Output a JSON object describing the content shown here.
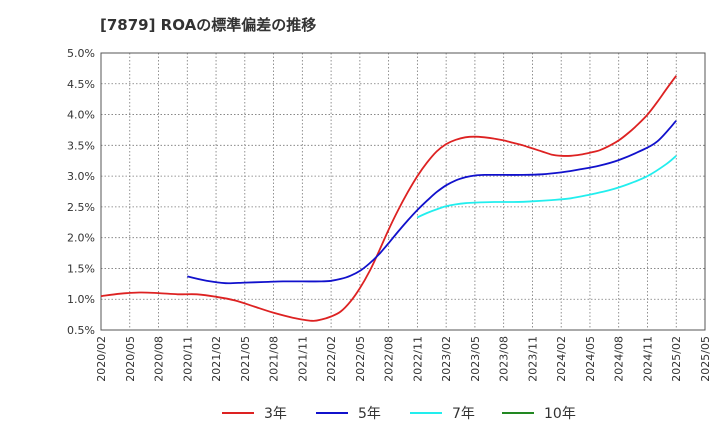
{
  "chart_data": {
    "type": "line",
    "title": "[7879]  ROAの標準偏差の推移",
    "x_ticks": [
      "2020/02",
      "2020/05",
      "2020/08",
      "2020/11",
      "2021/02",
      "2021/05",
      "2021/08",
      "2021/11",
      "2022/02",
      "2022/05",
      "2022/08",
      "2022/11",
      "2023/02",
      "2023/05",
      "2023/08",
      "2023/11",
      "2024/02",
      "2024/05",
      "2024/08",
      "2024/11",
      "2025/02",
      "2025/05"
    ],
    "y_ticks": [
      "0.5%",
      "1.0%",
      "1.5%",
      "2.0%",
      "2.5%",
      "3.0%",
      "3.5%",
      "4.0%",
      "4.5%",
      "5.0%"
    ],
    "ylim": [
      0.5,
      5.0
    ],
    "grid": true,
    "legend_position": "bottom",
    "series": [
      {
        "name": "3年",
        "color": "#dd2222",
        "x": [
          "2020/02",
          "2020/04",
          "2020/06",
          "2020/08",
          "2020/10",
          "2020/12",
          "2021/02",
          "2021/04",
          "2021/06",
          "2021/08",
          "2021/10",
          "2021/12",
          "2022/01",
          "2022/02",
          "2022/03",
          "2022/04",
          "2022/05",
          "2022/06",
          "2022/07",
          "2022/08",
          "2022/09",
          "2022/10",
          "2022/11",
          "2022/12",
          "2023/01",
          "2023/02",
          "2023/03",
          "2023/04",
          "2023/05",
          "2023/06",
          "2023/07",
          "2023/08",
          "2023/09",
          "2023/10",
          "2023/11",
          "2023/12",
          "2024/01",
          "2024/02",
          "2024/03",
          "2024/04",
          "2024/05",
          "2024/06",
          "2024/07",
          "2024/08",
          "2024/09",
          "2024/10",
          "2024/11",
          "2024/12",
          "2025/01",
          "2025/02"
        ],
        "values": [
          1.05,
          1.09,
          1.11,
          1.1,
          1.08,
          1.08,
          1.04,
          0.98,
          0.88,
          0.78,
          0.7,
          0.65,
          0.67,
          0.72,
          0.8,
          0.96,
          1.18,
          1.45,
          1.78,
          2.13,
          2.45,
          2.74,
          3.0,
          3.22,
          3.4,
          3.52,
          3.59,
          3.63,
          3.64,
          3.63,
          3.61,
          3.58,
          3.54,
          3.5,
          3.45,
          3.4,
          3.35,
          3.33,
          3.33,
          3.35,
          3.38,
          3.42,
          3.49,
          3.58,
          3.7,
          3.84,
          4.0,
          4.2,
          4.42,
          4.63
        ]
      },
      {
        "name": "5年",
        "color": "#1111cc",
        "x": [
          "2020/11",
          "2021/01",
          "2021/03",
          "2021/05",
          "2021/07",
          "2021/09",
          "2021/11",
          "2022/01",
          "2022/02",
          "2022/03",
          "2022/04",
          "2022/05",
          "2022/06",
          "2022/07",
          "2022/08",
          "2022/09",
          "2022/10",
          "2022/11",
          "2022/12",
          "2023/01",
          "2023/02",
          "2023/03",
          "2023/04",
          "2023/05",
          "2023/06",
          "2023/08",
          "2023/10",
          "2023/12",
          "2024/02",
          "2024/04",
          "2024/06",
          "2024/08",
          "2024/10",
          "2024/12",
          "2025/02"
        ],
        "values": [
          1.37,
          1.3,
          1.26,
          1.27,
          1.28,
          1.29,
          1.29,
          1.29,
          1.3,
          1.33,
          1.38,
          1.46,
          1.58,
          1.73,
          1.91,
          2.1,
          2.28,
          2.45,
          2.6,
          2.74,
          2.85,
          2.93,
          2.98,
          3.01,
          3.02,
          3.02,
          3.02,
          3.03,
          3.06,
          3.11,
          3.17,
          3.26,
          3.39,
          3.56,
          3.9
        ]
      },
      {
        "name": "7年",
        "color": "#22eeee",
        "x": [
          "2022/11",
          "2022/12",
          "2023/01",
          "2023/02",
          "2023/03",
          "2023/04",
          "2023/05",
          "2023/07",
          "2023/09",
          "2023/11",
          "2024/01",
          "2024/03",
          "2024/05",
          "2024/07",
          "2024/09",
          "2024/11",
          "2025/01",
          "2025/02"
        ],
        "values": [
          2.33,
          2.4,
          2.46,
          2.51,
          2.54,
          2.56,
          2.57,
          2.58,
          2.58,
          2.59,
          2.61,
          2.64,
          2.7,
          2.77,
          2.87,
          3.0,
          3.2,
          3.33
        ]
      },
      {
        "name": "10年",
        "color": "#228822",
        "x": [],
        "values": []
      }
    ]
  }
}
